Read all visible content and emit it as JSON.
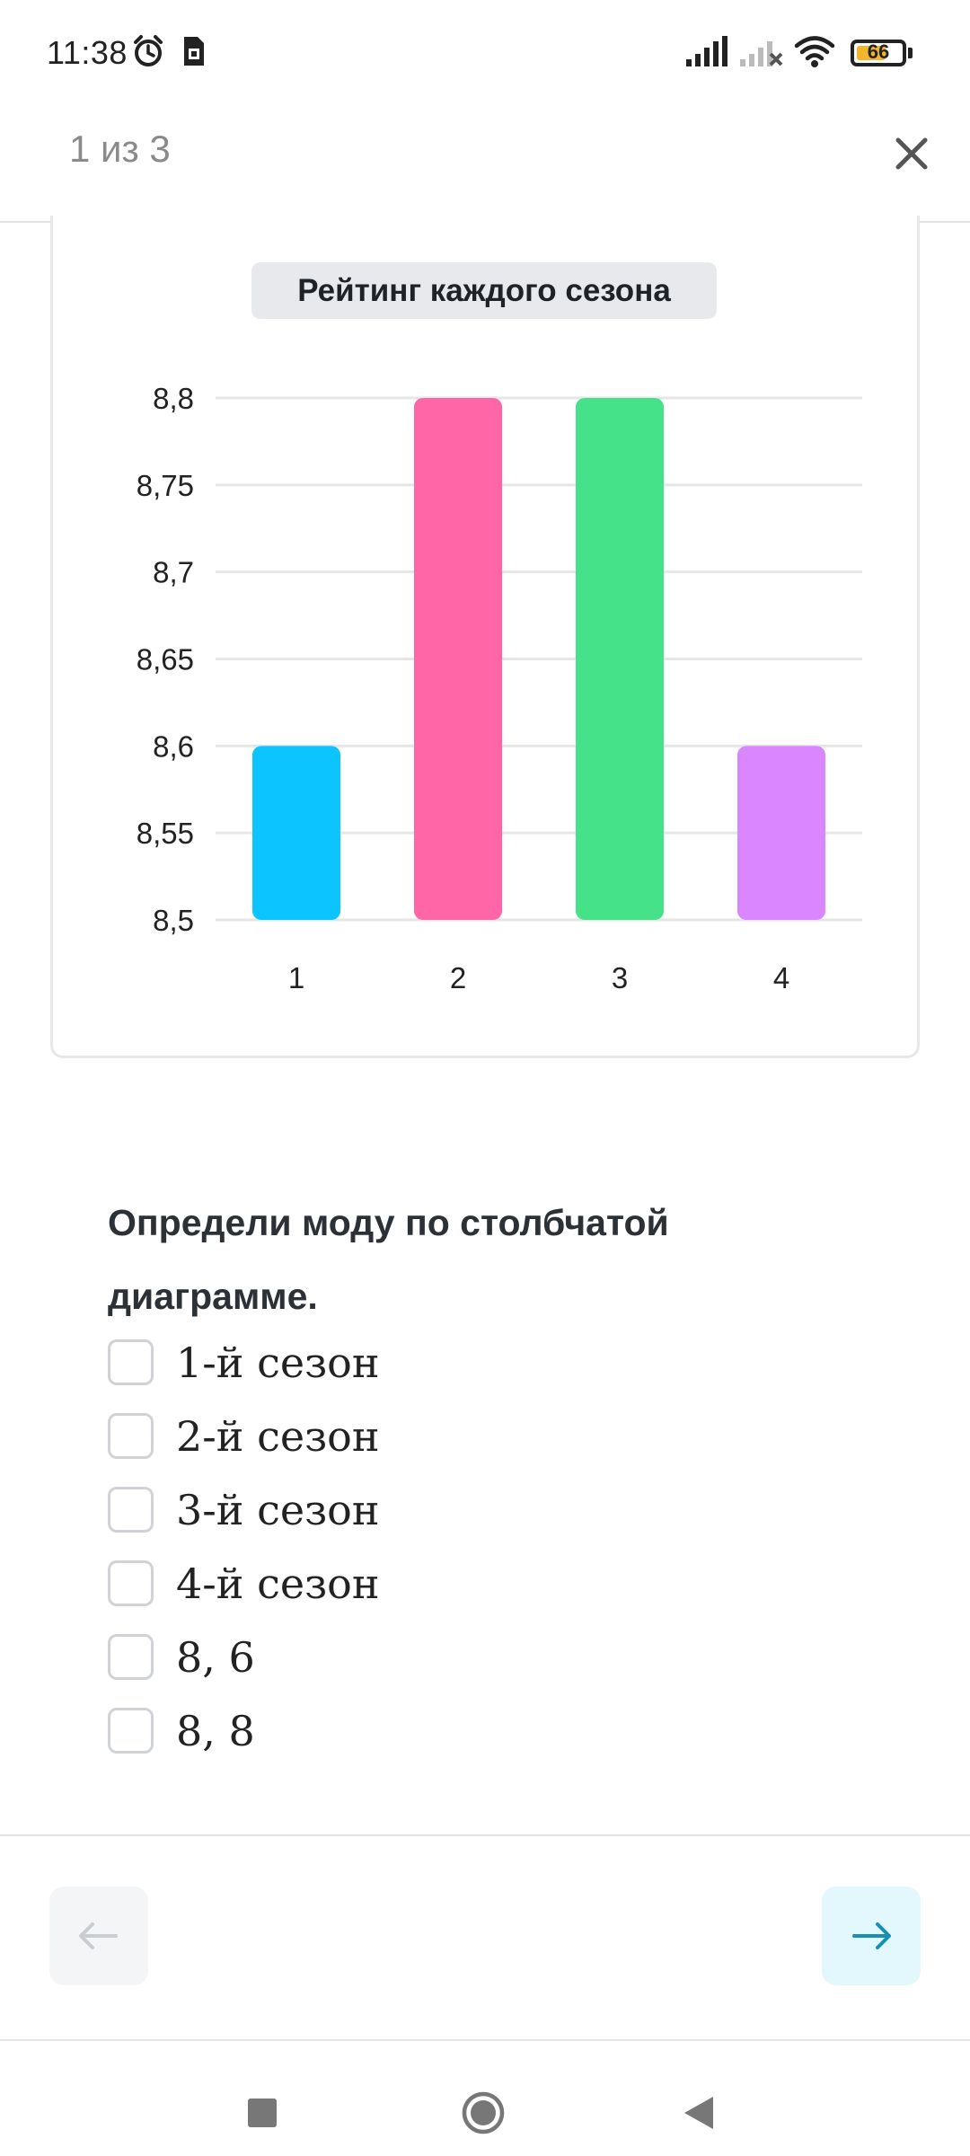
{
  "status_bar": {
    "time": "11:38",
    "battery_level": "66",
    "battery_fraction": 0.66,
    "icons": [
      "alarm-icon",
      "sim-icon",
      "signal-icon",
      "signal-no-service-icon",
      "wifi-icon",
      "battery-icon"
    ]
  },
  "header": {
    "progress": "1 из 3",
    "close_icon": "close-icon"
  },
  "chart_data": {
    "type": "bar",
    "title": "Рейтинг каждого сезона",
    "categories": [
      "1",
      "2",
      "3",
      "4"
    ],
    "values": [
      8.6,
      8.8,
      8.8,
      8.6
    ],
    "ylim": [
      8.5,
      8.8
    ],
    "yticks": [
      "8,5",
      "8,55",
      "8,6",
      "8,65",
      "8,7",
      "8,75",
      "8,8"
    ],
    "ytick_values": [
      8.5,
      8.55,
      8.6,
      8.65,
      8.7,
      8.75,
      8.8
    ],
    "colors": [
      "#0cc4ff",
      "#ff66a8",
      "#45e28a",
      "#d986ff"
    ],
    "grid": true,
    "xlabel": "",
    "ylabel": ""
  },
  "question": {
    "text": " Определи моду по столбчатой диаграмме.",
    "options": [
      {
        "label": "1-й сезон",
        "checked": false
      },
      {
        "label": "2-й сезон",
        "checked": false
      },
      {
        "label": "3-й сезон",
        "checked": false
      },
      {
        "label": "4-й сезон",
        "checked": false
      },
      {
        "label": "8, 6",
        "checked": false
      },
      {
        "label": "8, 8",
        "checked": false
      }
    ]
  },
  "navigation": {
    "prev_icon": "arrow-left-icon",
    "next_icon": "arrow-right-icon",
    "prev_enabled": false,
    "next_color": "#1a8fb5"
  },
  "system_nav": [
    "recent-apps-icon",
    "home-icon",
    "back-icon"
  ]
}
